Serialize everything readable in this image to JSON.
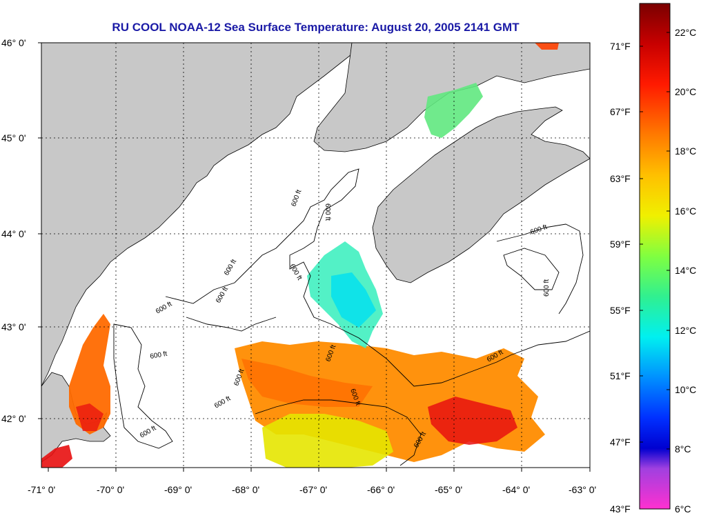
{
  "title": "RU COOL  NOAA-12  Sea Surface Temperature:  August 20, 2005 2141 GMT",
  "lat_labels": [
    "46° 0'",
    "45° 0'",
    "44° 0'",
    "43° 0'",
    "42° 0'"
  ],
  "lon_labels": [
    "-71° 0'",
    "-70° 0'",
    "-69° 0'",
    "-68° 0'",
    "-67° 0'",
    "-66° 0'",
    "-65° 0'",
    "-64° 0'",
    "-63° 0'"
  ],
  "fahrenheit_ticks": [
    "71°F",
    "67°F",
    "63°F",
    "59°F",
    "55°F",
    "51°F",
    "47°F",
    "43°F"
  ],
  "celsius_ticks": [
    "22°C",
    "20°C",
    "18°C",
    "16°C",
    "14°C",
    "12°C",
    "10°C",
    "8°C",
    "6°C"
  ],
  "contour_label": "600 ft",
  "colors": {
    "land": "#c8c8c8",
    "title": "#1a1aa6",
    "ocean_nodata": "#ffffff"
  }
}
